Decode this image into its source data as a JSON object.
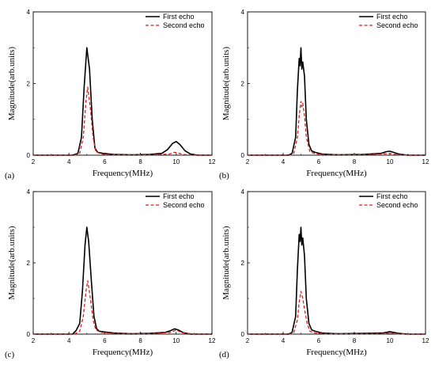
{
  "chart_data": [
    {
      "type": "line",
      "panel_label": "(a)",
      "xlabel": "Frequency(MHz)",
      "ylabel": "Magnitude(arb.units)",
      "xlim": [
        2,
        12
      ],
      "ylim": [
        0,
        4
      ],
      "xticks": [
        2,
        4,
        6,
        8,
        10,
        12
      ],
      "yticks": [
        0,
        2,
        4
      ],
      "legend_position": "top-right",
      "series": [
        {
          "name": "First echo",
          "color": "#000000",
          "style": "solid",
          "x": [
            2,
            4.2,
            4.5,
            4.7,
            4.85,
            5.0,
            5.15,
            5.3,
            5.45,
            5.6,
            5.9,
            6.5,
            7.5,
            8.5,
            9.2,
            9.5,
            9.8,
            10.0,
            10.2,
            10.5,
            10.8,
            11.2,
            12
          ],
          "y": [
            0,
            0,
            0.05,
            0.5,
            1.9,
            3.0,
            2.4,
            1.0,
            0.2,
            0.08,
            0.05,
            0.02,
            0.01,
            0.02,
            0.05,
            0.15,
            0.33,
            0.38,
            0.3,
            0.12,
            0.03,
            0,
            0
          ]
        },
        {
          "name": "Second echo",
          "color": "#d62020",
          "style": "dashed",
          "x": [
            2,
            4.3,
            4.6,
            4.8,
            4.95,
            5.05,
            5.2,
            5.35,
            5.5,
            5.8,
            6.5,
            8.5,
            9.6,
            9.9,
            10.1,
            10.4,
            11,
            12
          ],
          "y": [
            0,
            0,
            0.05,
            0.5,
            1.5,
            1.9,
            1.3,
            0.5,
            0.1,
            0.03,
            0.01,
            0.01,
            0.03,
            0.08,
            0.06,
            0.02,
            0,
            0
          ]
        }
      ]
    },
    {
      "type": "line",
      "panel_label": "(b)",
      "xlabel": "Frequency(MHz)",
      "ylabel": "Magnitude(arb.units)",
      "xlim": [
        2,
        12
      ],
      "ylim": [
        0,
        4
      ],
      "xticks": [
        2,
        4,
        6,
        8,
        10,
        12
      ],
      "yticks": [
        0,
        2,
        4
      ],
      "legend_position": "top-right",
      "series": [
        {
          "name": "First echo",
          "color": "#000000",
          "style": "solid",
          "x": [
            2,
            4.3,
            4.5,
            4.7,
            4.8,
            4.9,
            4.95,
            5.0,
            5.05,
            5.1,
            5.2,
            5.3,
            5.45,
            5.6,
            5.8,
            6.2,
            7,
            8.5,
            9.5,
            9.8,
            10.0,
            10.2,
            10.5,
            11,
            12
          ],
          "y": [
            0,
            0,
            0.05,
            0.5,
            1.8,
            2.7,
            2.5,
            3.0,
            2.4,
            2.6,
            2.2,
            1.0,
            0.3,
            0.12,
            0.08,
            0.03,
            0.01,
            0.02,
            0.05,
            0.1,
            0.11,
            0.08,
            0.03,
            0,
            0
          ]
        },
        {
          "name": "Second echo",
          "color": "#d62020",
          "style": "dashed",
          "x": [
            2,
            4.4,
            4.6,
            4.8,
            4.9,
            5.0,
            5.05,
            5.1,
            5.2,
            5.3,
            5.5,
            5.8,
            6.5,
            8.5,
            9.8,
            10.0,
            10.3,
            11,
            12
          ],
          "y": [
            0,
            0,
            0.05,
            0.5,
            1.1,
            1.5,
            1.35,
            1.45,
            1.1,
            0.5,
            0.1,
            0.04,
            0.01,
            0.01,
            0.04,
            0.05,
            0.02,
            0,
            0
          ]
        }
      ]
    },
    {
      "type": "line",
      "panel_label": "(c)",
      "xlabel": "Frequency(MHz)",
      "ylabel": "Magnitude(arb.units)",
      "xlim": [
        2,
        12
      ],
      "ylim": [
        0,
        4
      ],
      "xticks": [
        2,
        4,
        6,
        8,
        10,
        12
      ],
      "yticks": [
        0,
        2,
        4
      ],
      "legend_position": "top-right",
      "series": [
        {
          "name": "First echo",
          "color": "#000000",
          "style": "solid",
          "x": [
            2,
            4.2,
            4.4,
            4.6,
            4.75,
            4.9,
            5.0,
            5.1,
            5.25,
            5.4,
            5.55,
            5.7,
            6.0,
            6.5,
            7.5,
            8.5,
            9.4,
            9.7,
            9.9,
            10.1,
            10.4,
            10.8,
            12
          ],
          "y": [
            0,
            0,
            0.1,
            0.3,
            1.2,
            2.5,
            3.0,
            2.6,
            1.5,
            0.5,
            0.15,
            0.08,
            0.06,
            0.03,
            0.01,
            0.02,
            0.05,
            0.1,
            0.15,
            0.12,
            0.04,
            0,
            0
          ]
        },
        {
          "name": "Second echo",
          "color": "#d62020",
          "style": "dashed",
          "x": [
            2,
            4.3,
            4.6,
            4.8,
            4.95,
            5.05,
            5.2,
            5.35,
            5.5,
            5.8,
            6.5,
            8.5,
            9.7,
            10.0,
            10.3,
            11,
            12
          ],
          "y": [
            0,
            0,
            0.08,
            0.5,
            1.2,
            1.5,
            1.0,
            0.4,
            0.12,
            0.05,
            0.02,
            0.01,
            0.05,
            0.12,
            0.04,
            0,
            0
          ]
        }
      ]
    },
    {
      "type": "line",
      "panel_label": "(d)",
      "xlabel": "Frequency(MHz)",
      "ylabel": "Magnitude(arb.units)",
      "xlim": [
        2,
        12
      ],
      "ylim": [
        0,
        4
      ],
      "xticks": [
        2,
        4,
        6,
        8,
        10,
        12
      ],
      "yticks": [
        0,
        2,
        4
      ],
      "legend_position": "top-right",
      "series": [
        {
          "name": "First echo",
          "color": "#000000",
          "style": "solid",
          "x": [
            2,
            4.3,
            4.5,
            4.7,
            4.8,
            4.9,
            4.95,
            5.0,
            5.05,
            5.1,
            5.2,
            5.3,
            5.45,
            5.6,
            5.8,
            6.2,
            7,
            8.5,
            9.6,
            9.9,
            10.0,
            10.2,
            10.5,
            11,
            12
          ],
          "y": [
            0,
            0,
            0.05,
            0.5,
            1.8,
            2.8,
            2.6,
            3.0,
            2.5,
            2.7,
            2.2,
            1.0,
            0.3,
            0.12,
            0.08,
            0.03,
            0.01,
            0.02,
            0.03,
            0.06,
            0.07,
            0.05,
            0.02,
            0,
            0
          ]
        },
        {
          "name": "Second echo",
          "color": "#d62020",
          "style": "dashed",
          "x": [
            2,
            4.4,
            4.6,
            4.8,
            4.9,
            5.0,
            5.1,
            5.2,
            5.35,
            5.5,
            5.8,
            6.5,
            8.5,
            9.8,
            10.0,
            10.3,
            11,
            12
          ],
          "y": [
            0,
            0,
            0.05,
            0.4,
            0.9,
            1.2,
            1.0,
            0.7,
            0.3,
            0.08,
            0.03,
            0.01,
            0.01,
            0.02,
            0.03,
            0.01,
            0,
            0
          ]
        }
      ]
    }
  ]
}
